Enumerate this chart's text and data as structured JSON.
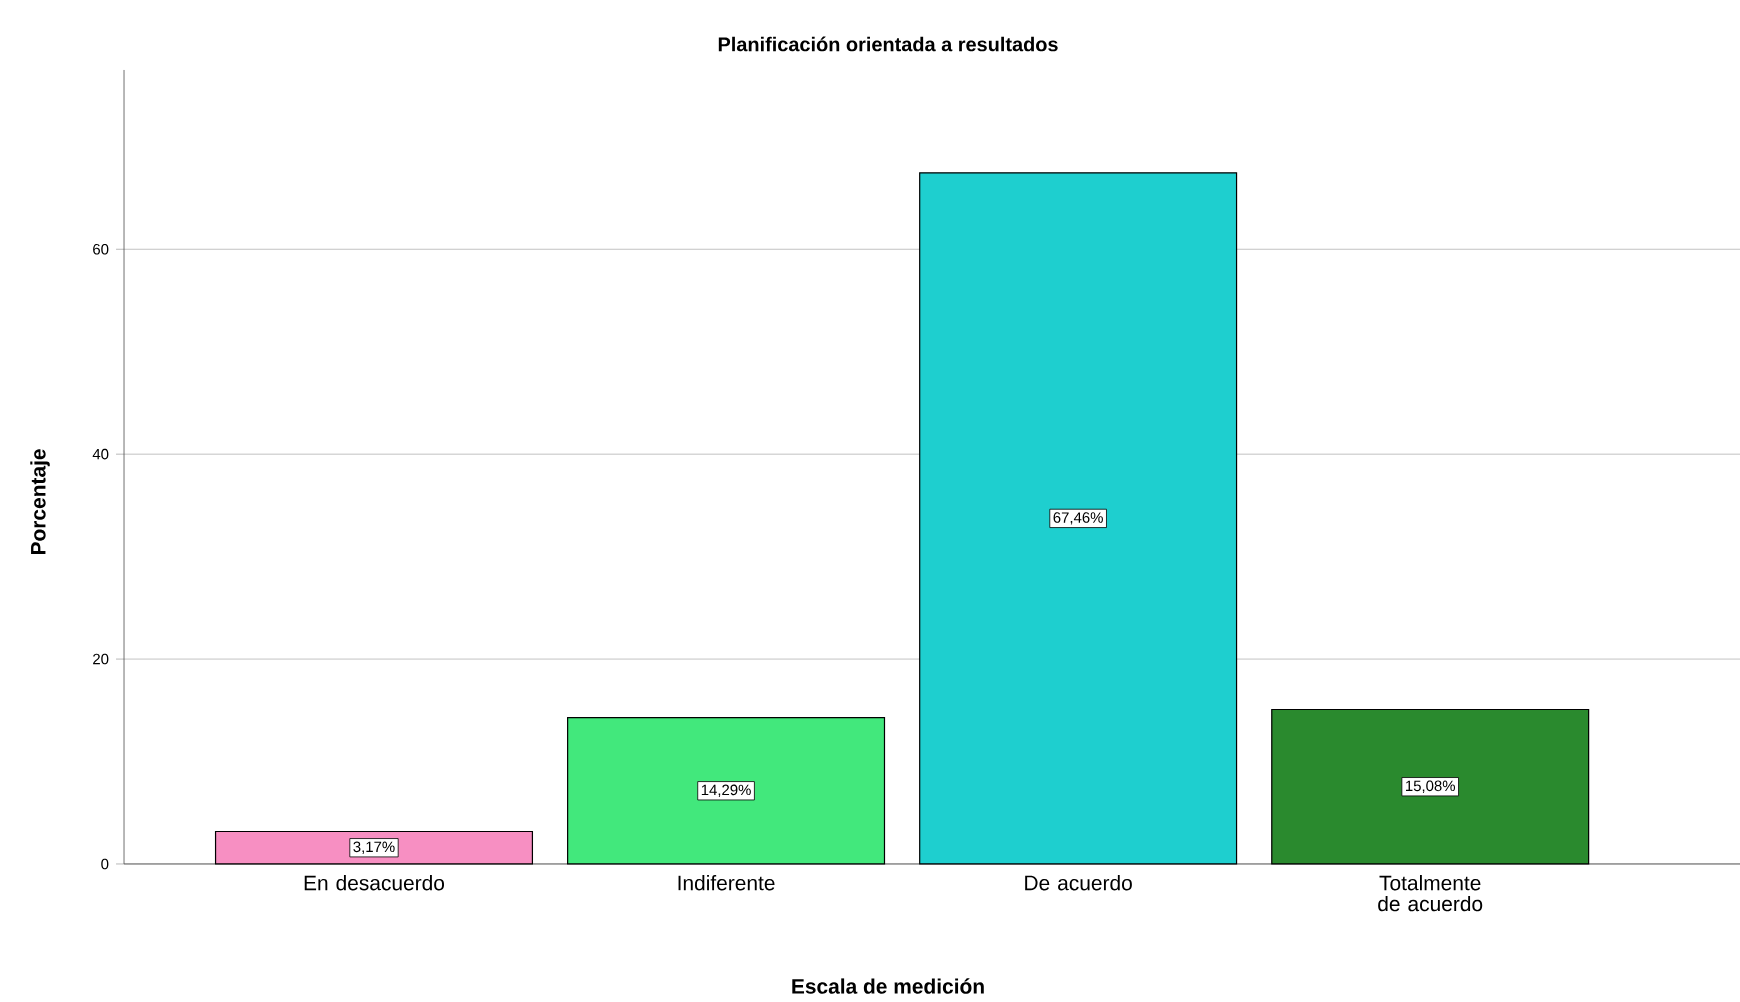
{
  "chart_data": {
    "type": "bar",
    "title": "Planificación orientada a resultados",
    "xlabel": "Escala de medición",
    "ylabel": "Porcentaje",
    "categories": [
      "En desacuerdo",
      "Indiferente",
      "De acuerdo",
      "Totalmente de acuerdo"
    ],
    "values": [
      3.17,
      14.29,
      67.46,
      15.08
    ],
    "colors": [
      "#f78fc2",
      "#42e87c",
      "#1ecfcf",
      "#2a8a2e"
    ],
    "value_labels": [
      "3,17%",
      "14,29%",
      "67,46%",
      "15,08%"
    ],
    "ylim": [
      0,
      77.5
    ],
    "yticks": [
      0,
      20,
      40,
      60
    ],
    "grid": "y"
  }
}
